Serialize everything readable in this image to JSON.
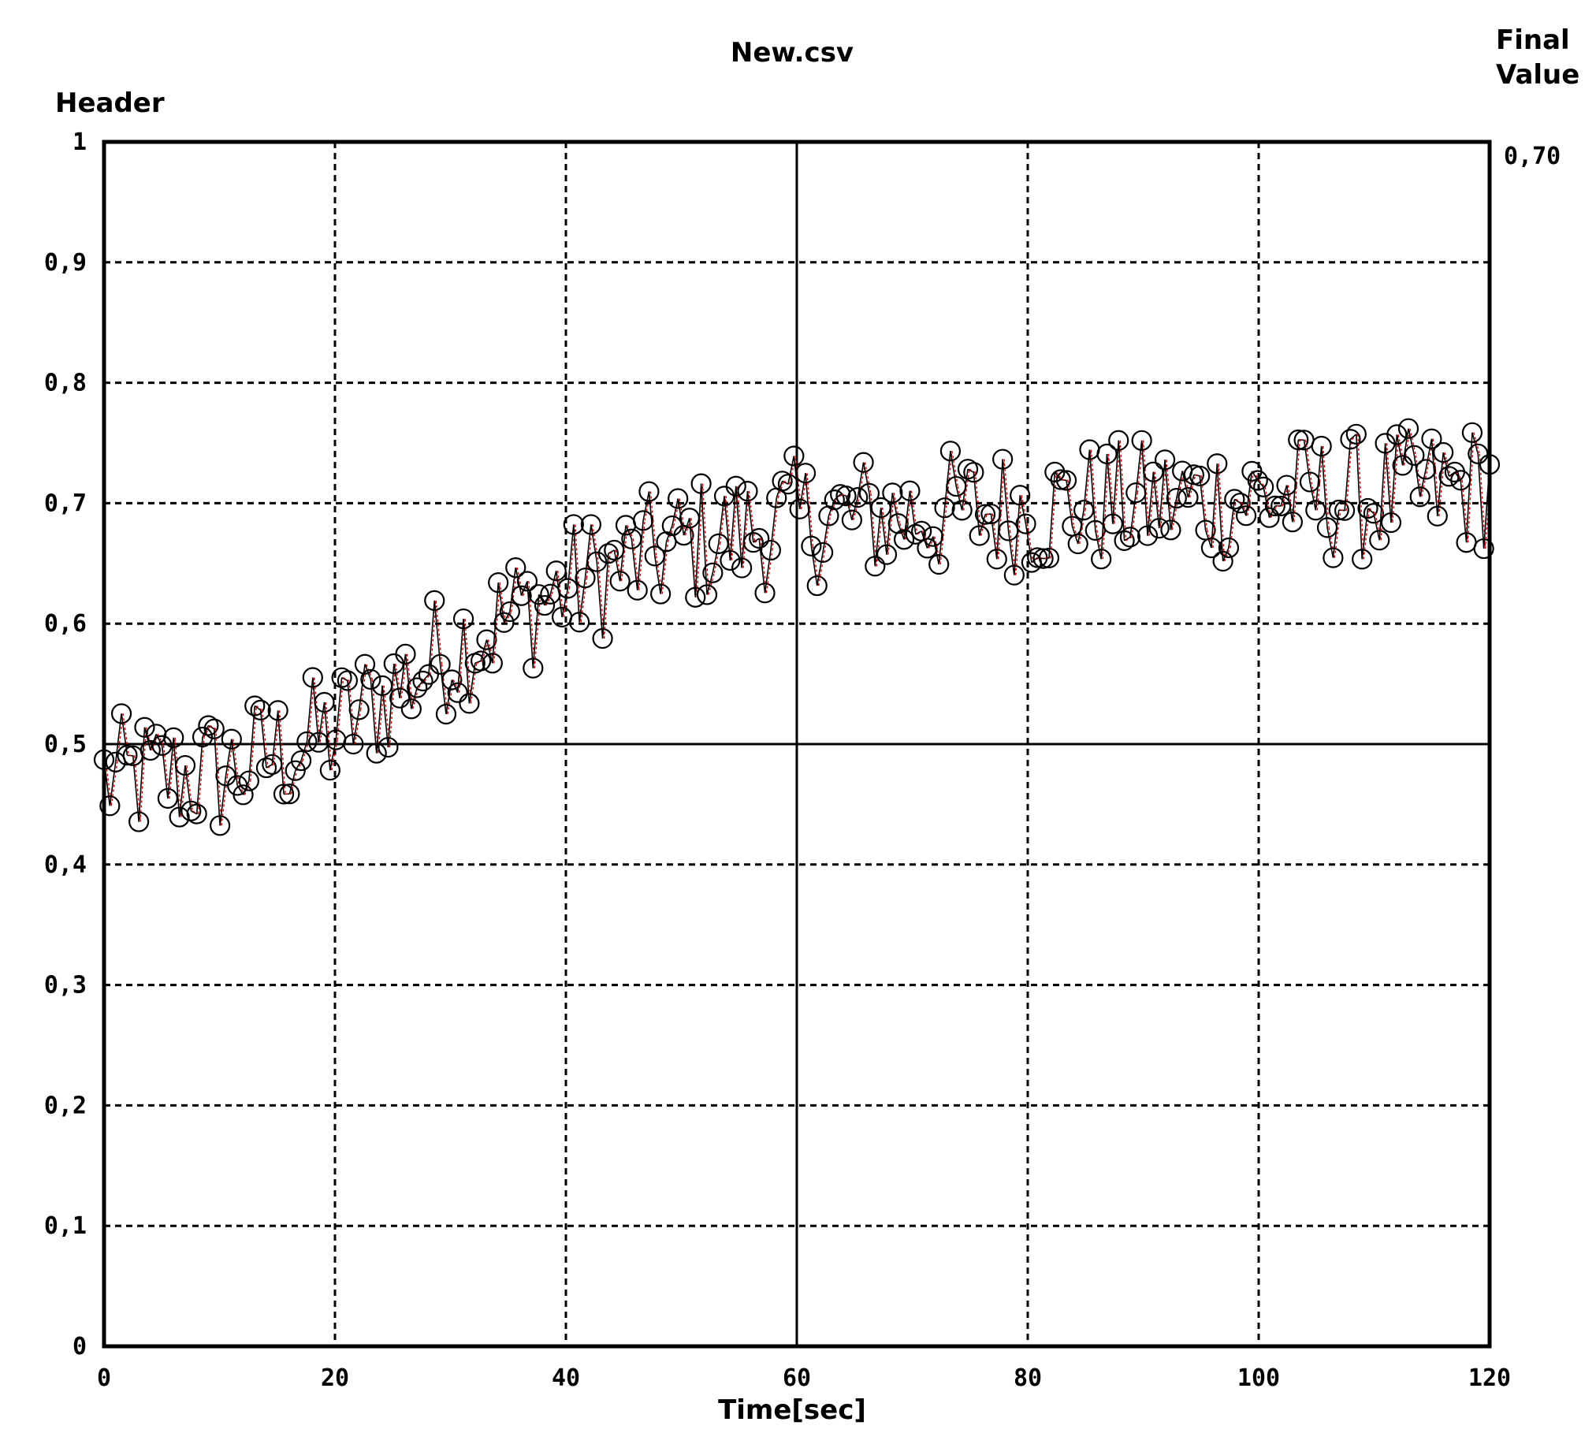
{
  "chart_data": {
    "type": "scatter",
    "title": "New.csv",
    "ylabel": "Header",
    "xlabel": "Time[sec]",
    "final_value_label": "Final\nValue",
    "final_value": "0,70",
    "xlim": [
      0,
      120
    ],
    "ylim": [
      0,
      1
    ],
    "x_ticks": [
      0,
      20,
      40,
      60,
      80,
      100,
      120
    ],
    "x_tick_labels": [
      "0",
      "20",
      "40",
      "60",
      "80",
      "100",
      "120"
    ],
    "y_ticks": [
      0,
      0.1,
      0.2,
      0.3,
      0.4,
      0.5,
      0.6,
      0.7,
      0.8,
      0.9,
      1
    ],
    "y_tick_labels": [
      "0",
      "0,1",
      "0,2",
      "0,3",
      "0,4",
      "0,5",
      "0,6",
      "0,7",
      "0,8",
      "0,9",
      "1"
    ],
    "solid_gridlines": {
      "x": [
        60
      ],
      "y": [
        0.5
      ]
    },
    "grid": true,
    "marker": "circle-open",
    "marker_color": "#000000",
    "trace_color": "#cc0000",
    "trend": [
      {
        "x": 0,
        "y": 0.47
      },
      {
        "x": 10,
        "y": 0.475
      },
      {
        "x": 20,
        "y": 0.51
      },
      {
        "x": 30,
        "y": 0.58
      },
      {
        "x": 40,
        "y": 0.63
      },
      {
        "x": 50,
        "y": 0.665
      },
      {
        "x": 60,
        "y": 0.685
      },
      {
        "x": 70,
        "y": 0.69
      },
      {
        "x": 80,
        "y": 0.695
      },
      {
        "x": 90,
        "y": 0.7
      },
      {
        "x": 100,
        "y": 0.705
      },
      {
        "x": 110,
        "y": 0.705
      },
      {
        "x": 120,
        "y": 0.715
      }
    ],
    "noise_band": 0.055,
    "point_count": 240
  }
}
